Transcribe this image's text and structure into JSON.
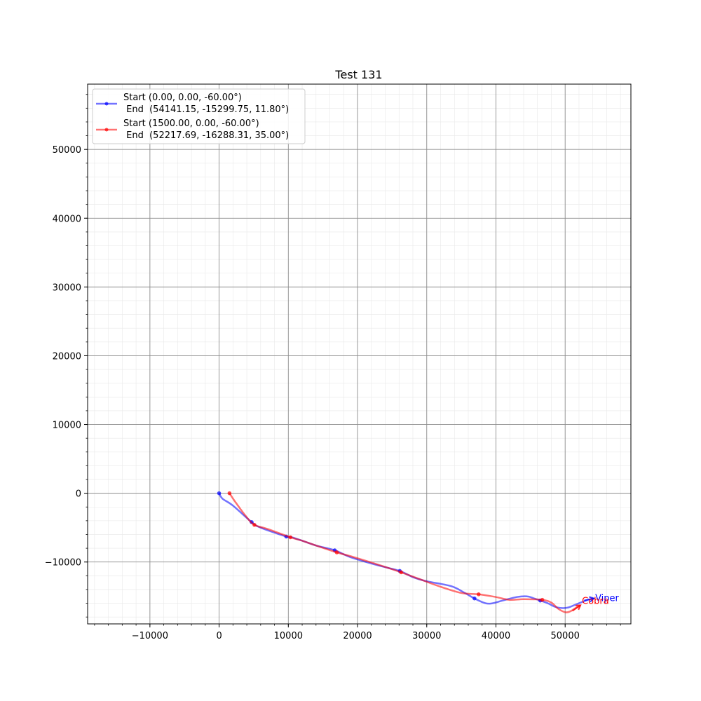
{
  "chart_data": {
    "type": "line",
    "title": "Test 131",
    "xlabel": "",
    "ylabel": "",
    "xlim": [
      -19000,
      59500
    ],
    "ylim": [
      -19000,
      59500
    ],
    "x_ticks": [
      -10000,
      0,
      10000,
      20000,
      30000,
      40000,
      50000
    ],
    "x_tick_labels": [
      "−10000",
      "0",
      "10000",
      "20000",
      "30000",
      "40000",
      "50000"
    ],
    "y_ticks": [
      -10000,
      0,
      10000,
      20000,
      30000,
      40000,
      50000
    ],
    "y_tick_labels": [
      "−10000",
      "0",
      "10000",
      "20000",
      "30000",
      "40000",
      "50000"
    ],
    "grid": true,
    "minor_grid": true,
    "legend_position": "top-left",
    "series": [
      {
        "legend_line1": "Start (0.00, 0.00, -60.00°)",
        "legend_line2": " End  (54141.15, -15299.75, 11.80°)",
        "label": "Viper",
        "color": "#0000ff",
        "end_heading_deg": 11.8,
        "path": [
          [
            0,
            0
          ],
          [
            500,
            -800
          ],
          [
            2000,
            -1800
          ],
          [
            4700,
            -4200
          ],
          [
            6000,
            -5000
          ],
          [
            9700,
            -6300
          ],
          [
            10500,
            -6400
          ],
          [
            12000,
            -6900
          ],
          [
            14000,
            -7600
          ],
          [
            16700,
            -8300
          ],
          [
            19000,
            -9300
          ],
          [
            23000,
            -10500
          ],
          [
            26100,
            -11300
          ],
          [
            28000,
            -12200
          ],
          [
            30000,
            -12800
          ],
          [
            33500,
            -13500
          ],
          [
            35500,
            -14500
          ],
          [
            36900,
            -15300
          ],
          [
            38500,
            -16000
          ],
          [
            39500,
            -16000
          ],
          [
            41000,
            -15600
          ],
          [
            43000,
            -15100
          ],
          [
            44500,
            -15000
          ],
          [
            45500,
            -15300
          ],
          [
            46400,
            -15600
          ],
          [
            47500,
            -16000
          ],
          [
            48500,
            -16500
          ],
          [
            49500,
            -16700
          ],
          [
            50500,
            -16600
          ],
          [
            51500,
            -16200
          ],
          [
            52500,
            -15800
          ],
          [
            53300,
            -15500
          ],
          [
            54141,
            -15300
          ]
        ],
        "markers": [
          [
            0,
            0
          ],
          [
            4700,
            -4200
          ],
          [
            9700,
            -6300
          ],
          [
            16700,
            -8300
          ],
          [
            26100,
            -11300
          ],
          [
            36900,
            -15300
          ],
          [
            46400,
            -15600
          ]
        ]
      },
      {
        "legend_line1": "Start (1500.00, 0.00, -60.00°)",
        "legend_line2": " End  (52217.69, -16288.31, 35.00°)",
        "label": "Cobra",
        "color": "#ff0000",
        "end_heading_deg": 35.0,
        "path": [
          [
            1500,
            0
          ],
          [
            2500,
            -1500
          ],
          [
            4000,
            -3500
          ],
          [
            5100,
            -4600
          ],
          [
            7000,
            -5200
          ],
          [
            10300,
            -6400
          ],
          [
            12000,
            -6900
          ],
          [
            14000,
            -7600
          ],
          [
            17000,
            -8600
          ],
          [
            19500,
            -9300
          ],
          [
            23000,
            -10400
          ],
          [
            26300,
            -11500
          ],
          [
            29000,
            -12500
          ],
          [
            32000,
            -13600
          ],
          [
            35000,
            -14500
          ],
          [
            37500,
            -14700
          ],
          [
            40000,
            -15100
          ],
          [
            42000,
            -15500
          ],
          [
            44000,
            -15400
          ],
          [
            46700,
            -15500
          ],
          [
            48000,
            -15900
          ],
          [
            49000,
            -16800
          ],
          [
            50000,
            -17300
          ],
          [
            50700,
            -17200
          ],
          [
            51500,
            -16700
          ],
          [
            52217,
            -16288
          ]
        ],
        "markers": [
          [
            1500,
            0
          ],
          [
            5100,
            -4600
          ],
          [
            10300,
            -6400
          ],
          [
            17000,
            -8600
          ],
          [
            26300,
            -11500
          ],
          [
            37500,
            -14700
          ],
          [
            46700,
            -15500
          ]
        ]
      }
    ]
  }
}
